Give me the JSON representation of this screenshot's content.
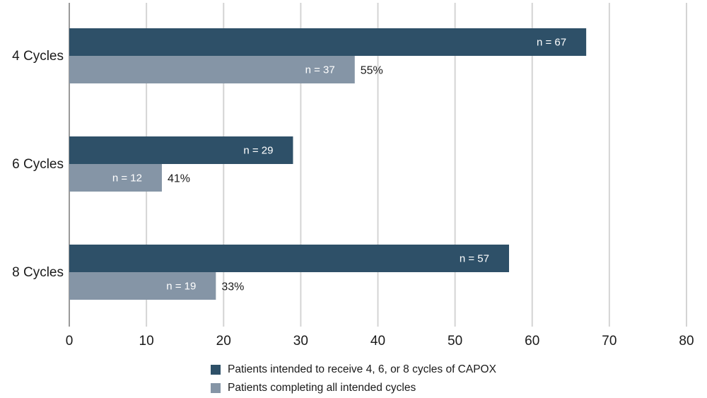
{
  "chart_data": {
    "type": "bar",
    "orientation": "horizontal",
    "categories": [
      "4 Cycles",
      "6 Cycles",
      "8 Cycles"
    ],
    "series": [
      {
        "name": "Patients intended to receive 4, 6, or 8 cycles of CAPOX",
        "values": [
          67,
          29,
          57
        ],
        "labels": [
          "n = 67",
          "n = 29",
          "n = 57"
        ],
        "color": "#2e5068"
      },
      {
        "name": "Patients completing all intended cycles",
        "values": [
          37,
          12,
          19
        ],
        "labels": [
          "n = 37",
          "n = 12",
          "n = 19"
        ],
        "percent_labels": [
          "55%",
          "41%",
          "33%"
        ],
        "color": "#8595a6"
      }
    ],
    "xlim": [
      0,
      80
    ],
    "xticks": [
      "0",
      "10",
      "20",
      "30",
      "40",
      "50",
      "60",
      "70",
      "80"
    ],
    "grid": true,
    "legend_position": "bottom"
  }
}
